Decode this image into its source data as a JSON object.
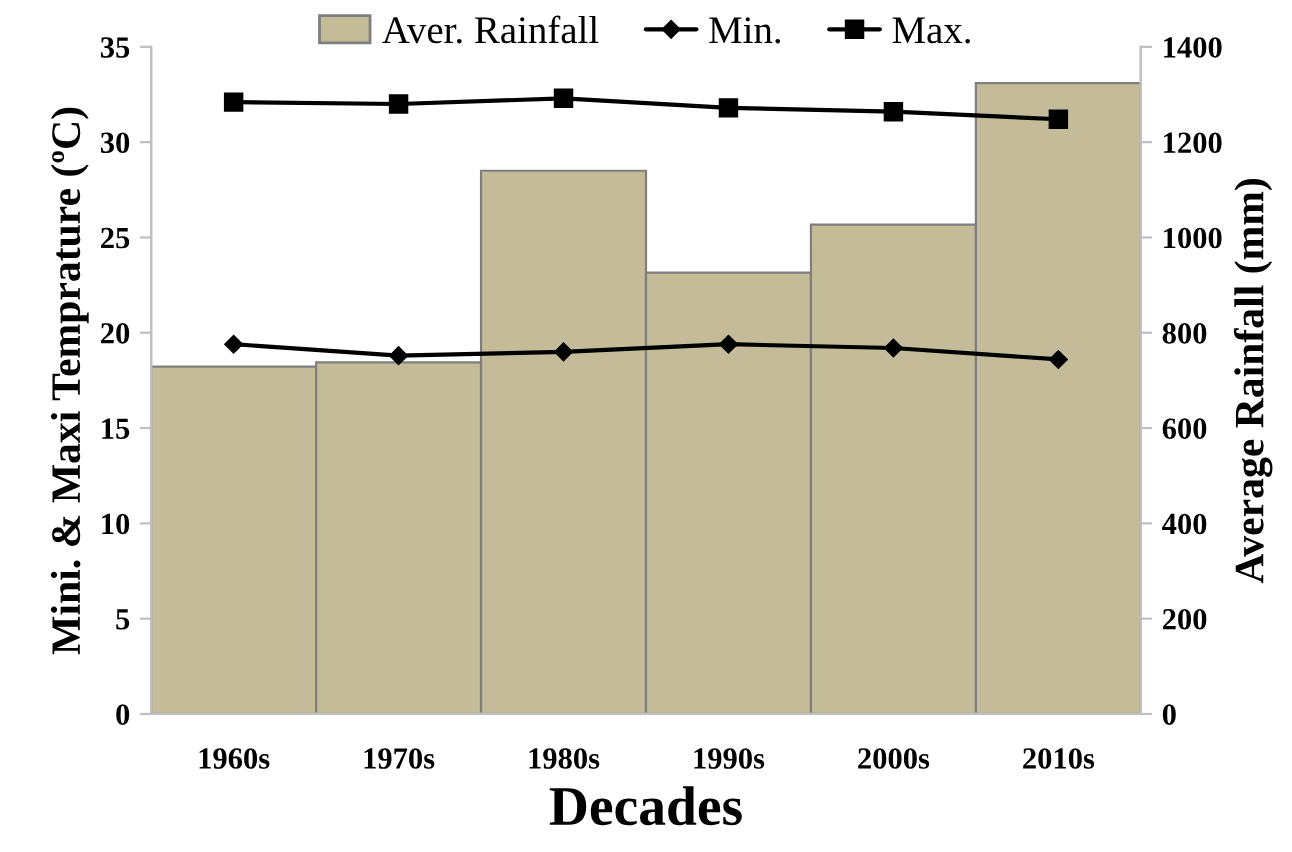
{
  "chart_data": {
    "type": "bar",
    "xlabel": "Decades",
    "ylabel": "Mini. & Maxi Temprature (ºC)",
    "y2label": "Average Rainfall (mm)",
    "categories": [
      "1960s",
      "1970s",
      "1980s",
      "1990s",
      "2000s",
      "2010s"
    ],
    "series": [
      {
        "name": "Aver. Rainfall",
        "axis": "y2",
        "color": "#c4bc98",
        "values": [
          729,
          738,
          1140,
          926,
          1027,
          1324
        ]
      },
      {
        "name": "Min.",
        "type": "line",
        "color": "#000000",
        "marker": "diamond",
        "values": [
          19.4,
          18.8,
          19.0,
          19.4,
          19.2,
          18.6
        ]
      },
      {
        "name": "Max.",
        "type": "line",
        "color": "#000000",
        "marker": "square",
        "values": [
          32.1,
          32.0,
          32.3,
          31.8,
          31.6,
          31.2
        ]
      }
    ],
    "ylim": [
      0,
      35
    ],
    "yticks": [
      0,
      5,
      10,
      15,
      20,
      25,
      30,
      35
    ],
    "y2lim": [
      0,
      1400
    ],
    "y2ticks": [
      0,
      200,
      400,
      600,
      800,
      1000,
      1200,
      1400
    ],
    "grid": false,
    "legend": "top",
    "line_style": "solid"
  }
}
